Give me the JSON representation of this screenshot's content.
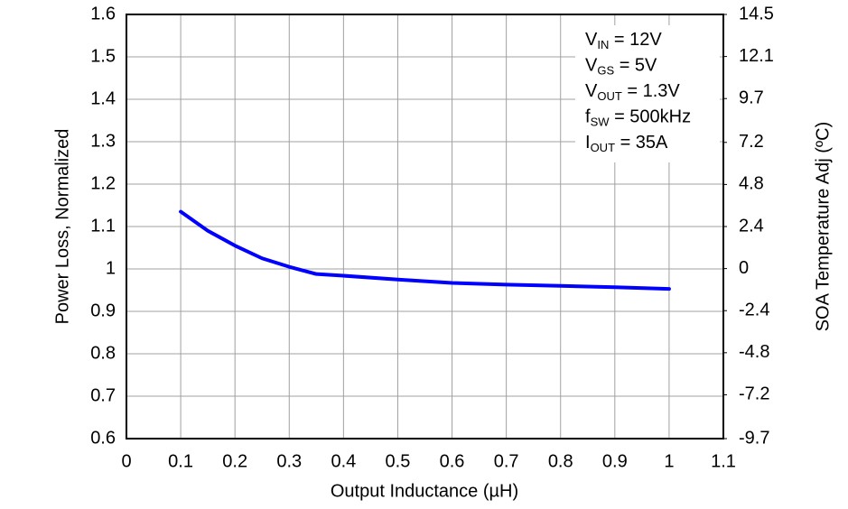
{
  "chart_data": {
    "type": "line",
    "x_label": "Output Inductance (µH)",
    "y_label": "Power Loss, Normalized",
    "y2_label": "SOA Temperature Adj (ºC)",
    "annotations": [
      {
        "main": "V",
        "sub": "IN",
        "rest": " = 12V"
      },
      {
        "main": "V",
        "sub": "GS",
        "rest": " = 5V"
      },
      {
        "main": "V",
        "sub": "OUT",
        "rest": " = 1.3V"
      },
      {
        "main": "f",
        "sub": "SW",
        "rest": " = 500kHz"
      },
      {
        "main": "I",
        "sub": "OUT",
        "rest": " = 35A"
      }
    ],
    "x": [
      0.1,
      0.15,
      0.2,
      0.25,
      0.3,
      0.35,
      0.4,
      0.5,
      0.6,
      0.7,
      0.8,
      0.9,
      1.0
    ],
    "series": [
      {
        "name": "Power Loss",
        "color": "#0000ff",
        "values": [
          1.135,
          1.09,
          1.055,
          1.025,
          1.005,
          0.988,
          0.984,
          0.975,
          0.967,
          0.963,
          0.96,
          0.957,
          0.953
        ]
      }
    ],
    "xlim": [
      0,
      1.1
    ],
    "xticks": [
      0,
      0.1,
      0.2,
      0.3,
      0.4,
      0.5,
      0.6,
      0.7,
      0.8,
      0.9,
      1,
      1.1
    ],
    "ylim": [
      0.6,
      1.6
    ],
    "yticks": [
      0.6,
      0.7,
      0.8,
      0.9,
      1,
      1.1,
      1.2,
      1.3,
      1.4,
      1.5,
      1.6
    ],
    "y2lim": [
      -9.7,
      14.5
    ],
    "y2ticks": [
      -9.7,
      -7.2,
      -4.8,
      -2.4,
      0,
      2.4,
      4.8,
      7.2,
      9.7,
      12.1,
      14.5
    ],
    "grid": true
  }
}
